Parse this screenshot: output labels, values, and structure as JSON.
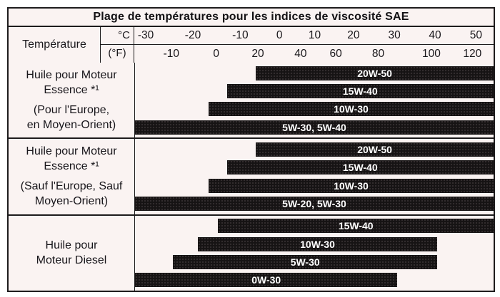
{
  "title": "Plage de températures pour les indices de viscosité SAE",
  "header": {
    "temperature_label": "Température",
    "unit_c": "°C",
    "unit_f": "(°F)"
  },
  "colors": {
    "background": "#faf3f2",
    "border": "#1d1b1c",
    "bar": "#161314",
    "bar_text": "#ffffff",
    "text": "#17151a"
  },
  "chart_data": {
    "type": "range_bars",
    "title": "Plage de températures pour les indices de viscosité SAE",
    "x_axis": {
      "label": "Température",
      "unit_primary": "°C",
      "unit_secondary": "(°F)",
      "range_c_visible": [
        -36,
        54
      ],
      "grid": false,
      "ticks_c": [
        {
          "label": "-30",
          "value": -30,
          "pos_pct": 3.2
        },
        {
          "label": "-20",
          "value": -20,
          "pos_pct": 16.3
        },
        {
          "label": "-10",
          "value": -10,
          "pos_pct": 29.5
        },
        {
          "label": "0",
          "value": 0,
          "pos_pct": 40.4
        },
        {
          "label": "10",
          "value": 10,
          "pos_pct": 50.2
        },
        {
          "label": "20",
          "value": 20,
          "pos_pct": 61.0
        },
        {
          "label": "30",
          "value": 30,
          "pos_pct": 72.4
        },
        {
          "label": "40",
          "value": 40,
          "pos_pct": 83.7
        },
        {
          "label": "50",
          "value": 50,
          "pos_pct": 95.1
        }
      ],
      "ticks_f": [
        {
          "label": "-10",
          "value": -10,
          "pos_pct": 10.3
        },
        {
          "label": "0",
          "value": 0,
          "pos_pct": 22.8
        },
        {
          "label": "20",
          "value": 20,
          "pos_pct": 34.4
        },
        {
          "label": "40",
          "value": 40,
          "pos_pct": 46.3
        },
        {
          "label": "60",
          "value": 60,
          "pos_pct": 56.1
        },
        {
          "label": "80",
          "value": 80,
          "pos_pct": 67.9
        },
        {
          "label": "100",
          "value": 100,
          "pos_pct": 82.7
        },
        {
          "label": "120",
          "value": 120,
          "pos_pct": 94.1
        }
      ]
    },
    "groups": [
      {
        "label_lines": [
          "Huile pour Moteur",
          "Essence *¹",
          "(Pour l'Europe,",
          "en Moyen-Orient)"
        ],
        "bars": [
          {
            "label": "20W-50",
            "start_pct": 33.7,
            "end_pct": 100,
            "approx_start_c": -7,
            "approx_end_c": 54
          },
          {
            "label": "15W-40",
            "start_pct": 25.6,
            "end_pct": 100,
            "approx_start_c": -13,
            "approx_end_c": 54
          },
          {
            "label": "10W-30",
            "start_pct": 20.5,
            "end_pct": 100,
            "approx_start_c": -18,
            "approx_end_c": 54
          },
          {
            "label": "5W-30, 5W-40",
            "start_pct": 0,
            "end_pct": 100,
            "approx_start_c": -36,
            "approx_end_c": 54
          }
        ]
      },
      {
        "label_lines": [
          "Huile pour Moteur",
          "Essence *¹",
          "(Sauf l'Europe, Sauf",
          "Moyen-Orient)"
        ],
        "bars": [
          {
            "label": "20W-50",
            "start_pct": 33.7,
            "end_pct": 100,
            "approx_start_c": -7,
            "approx_end_c": 54
          },
          {
            "label": "15W-40",
            "start_pct": 25.6,
            "end_pct": 100,
            "approx_start_c": -13,
            "approx_end_c": 54
          },
          {
            "label": "10W-30",
            "start_pct": 20.5,
            "end_pct": 100,
            "approx_start_c": -18,
            "approx_end_c": 54
          },
          {
            "label": "5W-20, 5W-30",
            "start_pct": 0,
            "end_pct": 100,
            "approx_start_c": -36,
            "approx_end_c": 54
          }
        ]
      },
      {
        "label_lines": [
          "Huile pour",
          "Moteur Diesel"
        ],
        "bars": [
          {
            "label": "15W-40",
            "start_pct": 23.2,
            "end_pct": 100,
            "approx_start_c": -16,
            "approx_end_c": 54
          },
          {
            "label": "10W-30",
            "start_pct": 17.5,
            "end_pct": 84.3,
            "approx_start_c": -21,
            "approx_end_c": 40
          },
          {
            "label": "5W-30",
            "start_pct": 10.6,
            "end_pct": 84.3,
            "approx_start_c": -27,
            "approx_end_c": 40
          },
          {
            "label": "0W-30",
            "start_pct": 0,
            "end_pct": 73.2,
            "approx_start_c": -36,
            "approx_end_c": 30
          }
        ]
      }
    ]
  }
}
